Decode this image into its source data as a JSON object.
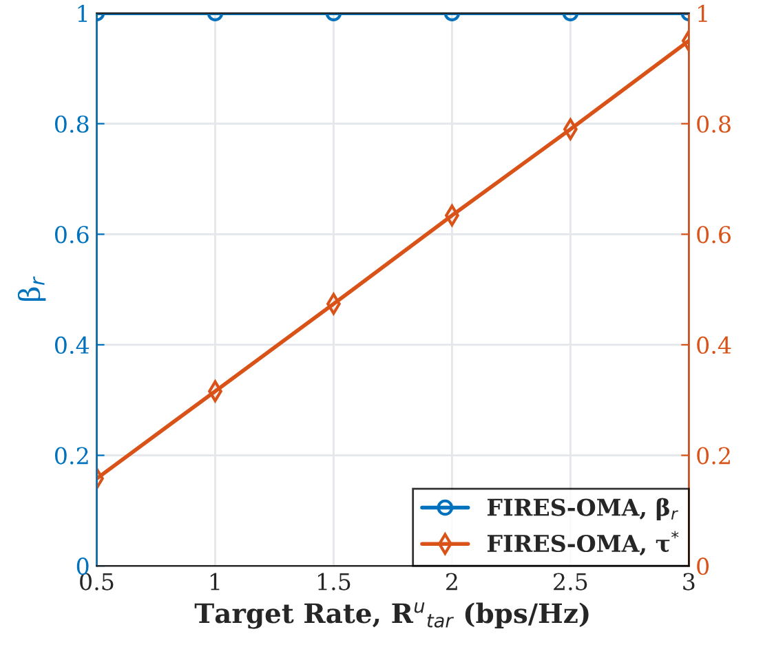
{
  "chart_data": {
    "type": "line",
    "xlabel": "Target Rate, R$^{u}$$_{tar}$ (bps/Hz)",
    "ylabel": "β$_{r}$",
    "x": [
      0.5,
      1,
      1.5,
      2,
      2.5,
      3
    ],
    "series": [
      {
        "name": "FIRES-OMA, β$_{r}$",
        "color": "#0072bd",
        "values": [
          1,
          1,
          1,
          1,
          1,
          1
        ],
        "marker": "circle"
      },
      {
        "name": "FIRES-OMA, τ$^{*}$",
        "color": "#d95319",
        "values": [
          0.158,
          0.316,
          0.474,
          0.634,
          0.79,
          0.95
        ],
        "marker": "diamond",
        "axis": "y2"
      }
    ],
    "xlim": [
      0.5,
      3
    ],
    "xticks": [
      0.5,
      1,
      1.5,
      2,
      2.5,
      3
    ],
    "ylim": [
      0,
      1
    ],
    "yticks": [
      0,
      0.2,
      0.4,
      0.6,
      0.8,
      1
    ],
    "y2lim": [
      0,
      1
    ],
    "y2ticks": [
      0,
      0.2,
      0.4,
      0.6,
      0.8,
      1
    ],
    "grid": true,
    "legend": "bottom right",
    "line_style": "solid"
  }
}
